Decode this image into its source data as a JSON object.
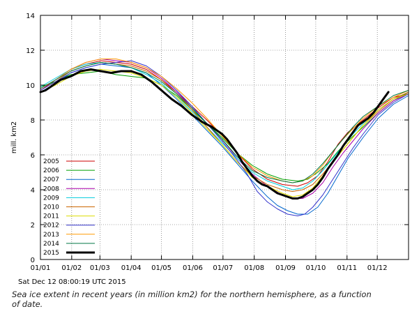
{
  "chart_data": {
    "type": "line",
    "title": "",
    "xlabel": "",
    "ylabel": "mill. km2",
    "ylim": [
      0,
      14
    ],
    "yticks": [
      "0",
      "2",
      "4",
      "6",
      "8",
      "10",
      "12",
      "14"
    ],
    "xlim_days": [
      0,
      365
    ],
    "xtick_labels": [
      "01/01",
      "01/02",
      "01/03",
      "01/04",
      "01/05",
      "01/06",
      "01/07",
      "01/08",
      "01/09",
      "01/10",
      "01/11",
      "01/12"
    ],
    "xtick_days": [
      0,
      31,
      59,
      90,
      120,
      151,
      181,
      212,
      243,
      273,
      304,
      334
    ],
    "grid": true,
    "legend_position": "lower-left",
    "series": [
      {
        "name": "2005",
        "color": "#cc0000",
        "width": 1,
        "x": [
          0,
          15,
          30,
          45,
          60,
          75,
          90,
          105,
          120,
          135,
          150,
          165,
          180,
          195,
          210,
          225,
          240,
          255,
          265,
          275,
          285,
          295,
          305,
          320,
          335,
          350,
          365
        ],
        "values": [
          9.7,
          10.3,
          10.9,
          11.2,
          11.4,
          11.3,
          11.2,
          10.9,
          10.3,
          9.6,
          8.8,
          8.0,
          7.1,
          6.1,
          5.2,
          4.6,
          4.3,
          4.2,
          4.4,
          4.8,
          5.6,
          6.6,
          7.3,
          8.0,
          8.7,
          9.3,
          9.5
        ]
      },
      {
        "name": "2006",
        "color": "#00a000",
        "width": 1,
        "x": [
          0,
          15,
          30,
          45,
          60,
          75,
          90,
          105,
          120,
          135,
          150,
          165,
          180,
          195,
          210,
          225,
          240,
          255,
          265,
          275,
          285,
          295,
          305,
          320,
          335,
          350,
          365
        ],
        "values": [
          9.9,
          10.2,
          10.6,
          10.7,
          10.8,
          10.6,
          10.5,
          10.4,
          10.0,
          9.4,
          8.6,
          7.8,
          7.0,
          6.1,
          5.4,
          4.9,
          4.6,
          4.5,
          4.6,
          5.0,
          5.5,
          6.2,
          6.8,
          7.6,
          8.4,
          9.1,
          9.6
        ]
      },
      {
        "name": "2007",
        "color": "#0066cc",
        "width": 1,
        "x": [
          0,
          15,
          30,
          45,
          60,
          75,
          90,
          105,
          120,
          135,
          150,
          165,
          180,
          195,
          210,
          225,
          235,
          245,
          255,
          265,
          275,
          285,
          295,
          305,
          320,
          335,
          350,
          365
        ],
        "values": [
          9.6,
          10.1,
          10.7,
          11.0,
          11.2,
          11.1,
          11.0,
          10.7,
          10.0,
          9.2,
          8.3,
          7.4,
          6.5,
          5.5,
          4.5,
          3.6,
          3.1,
          2.8,
          2.6,
          2.6,
          3.0,
          3.8,
          4.8,
          5.8,
          7.0,
          8.1,
          8.9,
          9.4
        ]
      },
      {
        "name": "2008",
        "color": "#aa00aa",
        "width": 1,
        "x": [
          0,
          15,
          30,
          45,
          60,
          75,
          90,
          105,
          120,
          135,
          150,
          165,
          180,
          195,
          210,
          225,
          240,
          250,
          260,
          270,
          280,
          290,
          300,
          310,
          320,
          335,
          350,
          365
        ],
        "values": [
          9.8,
          10.3,
          10.9,
          11.3,
          11.5,
          11.4,
          11.3,
          11.0,
          10.4,
          9.6,
          8.7,
          7.8,
          6.9,
          5.8,
          4.9,
          4.2,
          3.7,
          3.5,
          3.5,
          3.8,
          4.4,
          5.3,
          6.1,
          6.8,
          7.5,
          8.4,
          9.1,
          9.5
        ]
      },
      {
        "name": "2009",
        "color": "#00ccdd",
        "width": 1,
        "x": [
          0,
          15,
          30,
          45,
          60,
          75,
          90,
          105,
          120,
          135,
          150,
          165,
          180,
          195,
          210,
          225,
          240,
          250,
          260,
          270,
          280,
          290,
          300,
          310,
          320,
          335,
          350,
          365
        ],
        "values": [
          9.9,
          10.4,
          10.9,
          11.2,
          11.3,
          11.2,
          11.0,
          10.6,
          10.1,
          9.3,
          8.5,
          7.6,
          6.7,
          5.8,
          5.0,
          4.5,
          4.2,
          4.0,
          4.1,
          4.5,
          5.1,
          5.8,
          6.5,
          7.2,
          7.8,
          8.6,
          9.2,
          9.6
        ]
      },
      {
        "name": "2010",
        "color": "#cc6600",
        "width": 1,
        "x": [
          0,
          15,
          30,
          45,
          60,
          75,
          90,
          105,
          120,
          135,
          150,
          165,
          180,
          195,
          210,
          225,
          240,
          250,
          260,
          270,
          280,
          290,
          300,
          310,
          320,
          335,
          350,
          365
        ],
        "values": [
          9.7,
          10.2,
          10.8,
          11.1,
          11.3,
          11.2,
          11.1,
          10.8,
          10.3,
          9.5,
          8.6,
          7.6,
          6.6,
          5.6,
          4.8,
          4.3,
          4.0,
          3.9,
          4.0,
          4.3,
          4.9,
          5.6,
          6.3,
          7.0,
          7.7,
          8.5,
          9.2,
          9.6
        ]
      },
      {
        "name": "2011",
        "color": "#dddd00",
        "width": 1,
        "x": [
          0,
          15,
          30,
          45,
          60,
          75,
          90,
          105,
          120,
          135,
          150,
          165,
          180,
          195,
          210,
          225,
          240,
          250,
          260,
          270,
          280,
          290,
          300,
          310,
          320,
          335,
          350,
          365
        ],
        "values": [
          9.6,
          10.0,
          10.5,
          10.8,
          10.9,
          10.8,
          10.7,
          10.4,
          10.0,
          9.3,
          8.4,
          7.5,
          6.6,
          5.6,
          4.7,
          4.2,
          3.8,
          3.6,
          3.7,
          4.1,
          4.8,
          5.6,
          6.3,
          7.0,
          7.7,
          8.6,
          9.2,
          9.5
        ]
      },
      {
        "name": "2012",
        "color": "#3333cc",
        "width": 1,
        "x": [
          0,
          15,
          30,
          45,
          60,
          75,
          90,
          105,
          120,
          135,
          150,
          165,
          180,
          195,
          205,
          215,
          225,
          235,
          245,
          255,
          262,
          270,
          280,
          290,
          300,
          310,
          320,
          335,
          350,
          365
        ],
        "values": [
          9.7,
          10.2,
          10.7,
          11.0,
          11.2,
          11.3,
          11.4,
          11.1,
          10.5,
          9.7,
          8.8,
          7.8,
          6.8,
          5.7,
          4.9,
          3.9,
          3.3,
          2.9,
          2.6,
          2.5,
          2.6,
          3.0,
          3.7,
          4.6,
          5.5,
          6.4,
          7.2,
          8.3,
          9.0,
          9.5
        ]
      },
      {
        "name": "2013",
        "color": "#ff9900",
        "width": 1,
        "x": [
          0,
          15,
          30,
          45,
          60,
          75,
          90,
          105,
          120,
          135,
          150,
          165,
          180,
          195,
          210,
          225,
          240,
          250,
          260,
          270,
          280,
          290,
          300,
          310,
          320,
          335,
          350,
          365
        ],
        "values": [
          9.8,
          10.3,
          10.9,
          11.3,
          11.5,
          11.5,
          11.3,
          11.0,
          10.5,
          9.8,
          9.0,
          8.1,
          7.1,
          6.1,
          5.3,
          4.8,
          4.5,
          4.4,
          4.5,
          4.8,
          5.4,
          6.2,
          6.9,
          7.5,
          8.1,
          8.8,
          9.3,
          9.7
        ]
      },
      {
        "name": "2014",
        "color": "#007744",
        "width": 1,
        "x": [
          0,
          15,
          30,
          45,
          60,
          75,
          90,
          105,
          120,
          135,
          150,
          165,
          180,
          195,
          210,
          225,
          240,
          250,
          260,
          270,
          280,
          290,
          300,
          310,
          320,
          335,
          350,
          365
        ],
        "values": [
          9.8,
          10.3,
          10.8,
          11.1,
          11.3,
          11.2,
          11.0,
          10.7,
          10.2,
          9.5,
          8.7,
          7.8,
          6.9,
          5.9,
          5.1,
          4.7,
          4.5,
          4.4,
          4.5,
          4.9,
          5.5,
          6.2,
          6.9,
          7.6,
          8.2,
          8.8,
          9.4,
          9.7
        ]
      },
      {
        "name": "2015",
        "color": "#000000",
        "width": 3,
        "x": [
          0,
          5,
          10,
          15,
          20,
          30,
          40,
          50,
          60,
          70,
          80,
          90,
          100,
          110,
          120,
          130,
          140,
          150,
          160,
          170,
          180,
          185,
          190,
          195,
          200,
          205,
          210,
          215,
          220,
          225,
          230,
          235,
          240,
          245,
          250,
          255,
          260,
          265,
          270,
          275,
          280,
          285,
          290,
          295,
          300,
          305,
          310,
          315,
          320,
          325,
          330,
          335,
          340,
          345
        ],
        "values": [
          9.6,
          9.7,
          9.9,
          10.1,
          10.3,
          10.5,
          10.8,
          10.9,
          10.8,
          10.7,
          10.8,
          10.8,
          10.6,
          10.2,
          9.7,
          9.2,
          8.8,
          8.3,
          7.9,
          7.6,
          7.2,
          6.9,
          6.5,
          6.1,
          5.6,
          5.2,
          4.8,
          4.5,
          4.3,
          4.2,
          4.0,
          3.8,
          3.7,
          3.6,
          3.5,
          3.5,
          3.6,
          3.8,
          4.0,
          4.3,
          4.7,
          5.2,
          5.6,
          6.0,
          6.5,
          6.9,
          7.3,
          7.7,
          7.9,
          8.1,
          8.4,
          8.8,
          9.2,
          9.6
        ]
      }
    ]
  },
  "footer": {
    "timestamp": "Sat Dec 12 08:00:19 UTC 2015",
    "caption": "Sea ice extent in recent years (in million km2) for the northern hemisphere, as a function of date."
  }
}
